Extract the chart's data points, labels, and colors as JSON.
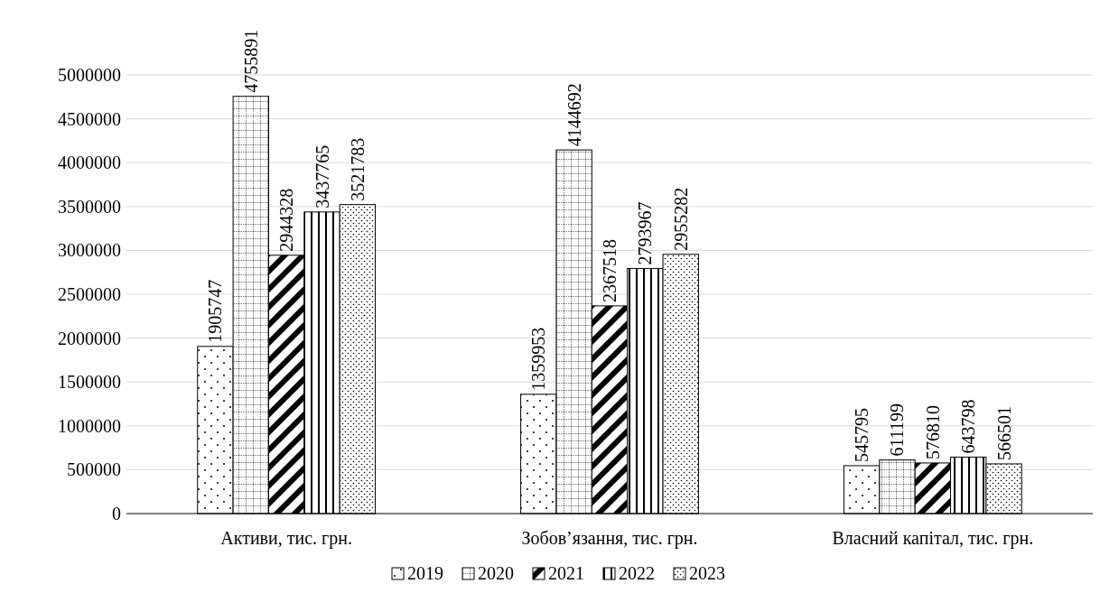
{
  "chart_data": {
    "type": "bar",
    "categories": [
      "Активи, тис. грн.",
      "Зобов’язання, тис. грн.",
      "Власний капітал, тис. грн."
    ],
    "series": [
      {
        "name": "2019",
        "color": "#000000",
        "values": [
          1905747,
          1359953,
          545795
        ]
      },
      {
        "name": "2020",
        "color": "#000000",
        "values": [
          4755891,
          4144692,
          611199
        ]
      },
      {
        "name": "2021",
        "color": "#000000",
        "values": [
          2944328,
          2367518,
          576810
        ]
      },
      {
        "name": "2022",
        "color": "#000000",
        "values": [
          3437765,
          2793967,
          643798
        ]
      },
      {
        "name": "2023",
        "color": "#000000",
        "values": [
          3521783,
          2955282,
          566501
        ]
      }
    ],
    "ylim": [
      0,
      5000000
    ],
    "yticks": [
      0,
      500000,
      1000000,
      1500000,
      2000000,
      2500000,
      3000000,
      3500000,
      4000000,
      4500000,
      5000000
    ],
    "grid": "y",
    "legend": "bottom",
    "data_labels": true
  }
}
